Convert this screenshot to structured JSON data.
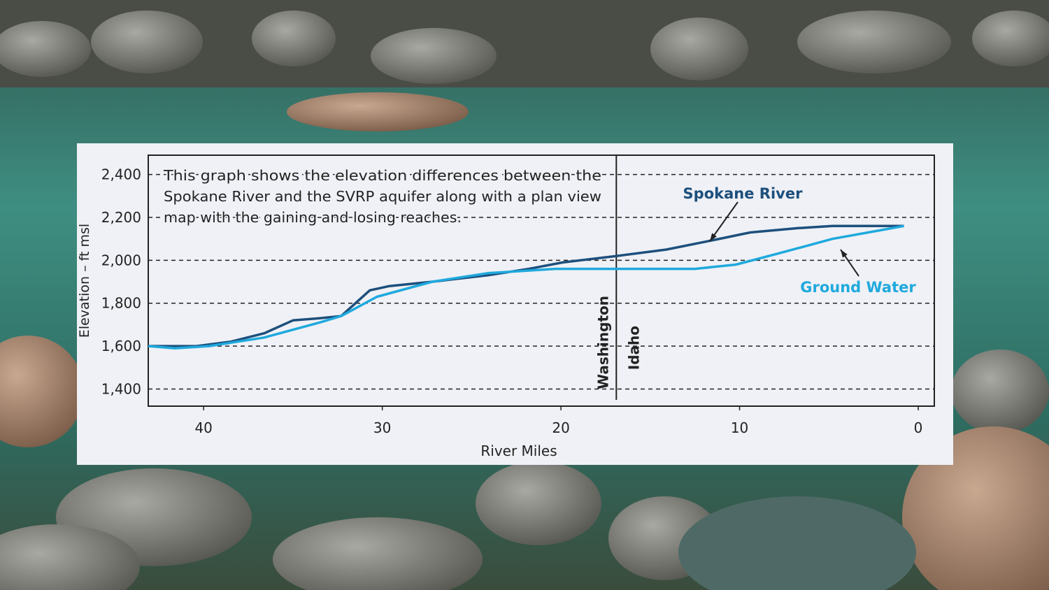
{
  "chart_data": {
    "type": "line",
    "note_lines": [
      "This graph shows the elevation differences between the",
      "Spokane River and the SVRP aquifer along with a plan view",
      "map with the gaining and losing reaches."
    ],
    "x_label": "River Miles",
    "y_label": "Elevation – ft msl",
    "xlim": [
      43.1,
      -0.9
    ],
    "ylim": [
      1320,
      2490
    ],
    "xticks": [
      40,
      30,
      20,
      10,
      0
    ],
    "yticks": [
      {
        "value": 1400,
        "label": "1,400"
      },
      {
        "value": 1600,
        "label": "1,600"
      },
      {
        "value": 1800,
        "label": "1,800"
      },
      {
        "value": 2000,
        "label": "2,000"
      },
      {
        "value": 2200,
        "label": "2,200"
      },
      {
        "value": 2400,
        "label": "2,400"
      }
    ],
    "grid": true,
    "boundary": {
      "x": 16.9,
      "left_label": "Washington",
      "right_label": "Idaho"
    },
    "series": [
      {
        "name": "Spokane River",
        "color": "#1d4f7c",
        "x": [
          43.1,
          40.4,
          38.5,
          36.6,
          35.0,
          33.5,
          32.3,
          30.7,
          29.6,
          27.2,
          24.1,
          21.8,
          19.9,
          16.9,
          14.1,
          11.7,
          9.4,
          6.7,
          4.8,
          0.8
        ],
        "values": [
          1600,
          1600,
          1620,
          1660,
          1720,
          1730,
          1740,
          1860,
          1880,
          1900,
          1930,
          1960,
          1990,
          2020,
          2050,
          2090,
          2130,
          2150,
          2160,
          2160
        ]
      },
      {
        "name": "Ground Water",
        "color": "#1fa9dd",
        "x": [
          43.1,
          41.6,
          39.7,
          36.6,
          33.5,
          32.3,
          30.3,
          27.2,
          24.1,
          20.3,
          16.9,
          12.5,
          10.2,
          7.9,
          4.8,
          0.8
        ],
        "values": [
          1600,
          1590,
          1600,
          1640,
          1710,
          1740,
          1830,
          1900,
          1940,
          1960,
          1960,
          1960,
          1980,
          2030,
          2100,
          2160
        ]
      }
    ]
  }
}
